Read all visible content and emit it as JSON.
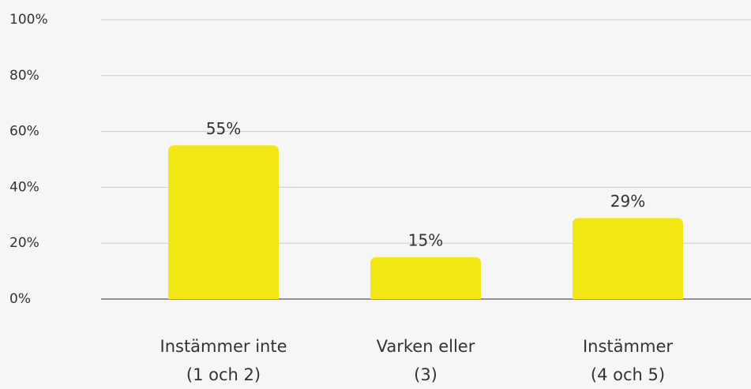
{
  "chart_data": {
    "type": "bar",
    "categories": [
      [
        "Instämmer inte",
        "(1 och 2)"
      ],
      [
        "Varken eller",
        "(3)"
      ],
      [
        "Instämmer",
        "(4 och 5)"
      ]
    ],
    "values": [
      55,
      15,
      29
    ],
    "value_labels": [
      "55%",
      "15%",
      "29%"
    ],
    "color": "#f2e614",
    "ylim": [
      0,
      100
    ],
    "yticks": [
      {
        "value": 0,
        "label": "0%"
      },
      {
        "value": 20,
        "label": "20%"
      },
      {
        "value": 40,
        "label": "40%"
      },
      {
        "value": 60,
        "label": "60%"
      },
      {
        "value": 80,
        "label": "80%"
      },
      {
        "value": 100,
        "label": "100%"
      }
    ],
    "grid": true
  }
}
